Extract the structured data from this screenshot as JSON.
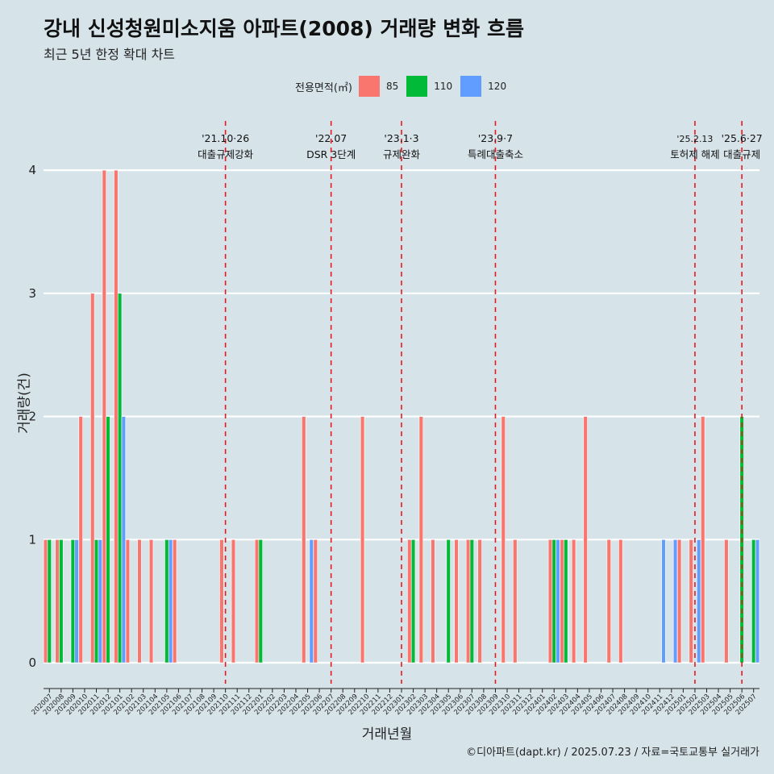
{
  "header": {
    "title": "강내 신성청원미소지움 아파트(2008) 거래량 변화 흐름",
    "subtitle": "최근 5년 한정 확대 차트"
  },
  "legend": {
    "title": "전용면적(㎡)",
    "items": [
      {
        "label": "85",
        "color": "#f8766d"
      },
      {
        "label": "110",
        "color": "#00ba38"
      },
      {
        "label": "120",
        "color": "#619cff"
      }
    ]
  },
  "caption": "©디아파트(dapt.kr) / 2025.07.23 / 자료=국토교통부 실거래가",
  "chart_data": {
    "type": "bar",
    "xlabel": "거래년월",
    "ylabel": "거래량(건)",
    "ylim": [
      -0.17,
      4.4
    ],
    "yticks": [
      0,
      1,
      2,
      3,
      4
    ],
    "grid": true,
    "categories": [
      "202007",
      "202008",
      "202009",
      "202010",
      "202011",
      "202012",
      "202101",
      "202102",
      "202103",
      "202104",
      "202105",
      "202106",
      "202107",
      "202108",
      "202109",
      "202110",
      "202111",
      "202112",
      "202201",
      "202202",
      "202203",
      "202204",
      "202205",
      "202206",
      "202207",
      "202208",
      "202209",
      "202210",
      "202211",
      "202212",
      "202301",
      "202302",
      "202303",
      "202304",
      "202305",
      "202306",
      "202307",
      "202308",
      "202309",
      "202310",
      "202311",
      "202312",
      "202401",
      "202402",
      "202403",
      "202404",
      "202405",
      "202406",
      "202407",
      "202408",
      "202409",
      "202410",
      "202411",
      "202412",
      "202501",
      "202502",
      "202503",
      "202504",
      "202505",
      "202506",
      "202507"
    ],
    "series": [
      {
        "name": "85",
        "color": "#f8766d",
        "values": [
          1,
          1,
          0,
          2,
          3,
          4,
          4,
          1,
          1,
          1,
          0,
          1,
          0,
          0,
          0,
          1,
          1,
          0,
          1,
          0,
          0,
          0,
          2,
          1,
          0,
          0,
          0,
          2,
          0,
          0,
          0,
          1,
          2,
          1,
          0,
          1,
          1,
          1,
          0,
          2,
          1,
          0,
          0,
          1,
          1,
          1,
          2,
          0,
          1,
          1,
          0,
          0,
          0,
          0,
          1,
          1,
          2,
          0,
          1,
          0,
          0
        ]
      },
      {
        "name": "110",
        "color": "#00ba38",
        "values": [
          1,
          1,
          1,
          0,
          1,
          2,
          3,
          0,
          0,
          0,
          1,
          0,
          0,
          0,
          0,
          0,
          0,
          0,
          1,
          0,
          0,
          0,
          0,
          0,
          0,
          0,
          0,
          0,
          0,
          0,
          0,
          1,
          0,
          0,
          1,
          0,
          1,
          0,
          0,
          0,
          0,
          0,
          0,
          1,
          1,
          0,
          0,
          0,
          0,
          0,
          0,
          0,
          0,
          0,
          0,
          0,
          0,
          0,
          0,
          2,
          1
        ]
      },
      {
        "name": "120",
        "color": "#619cff",
        "values": [
          0,
          0,
          1,
          0,
          1,
          0,
          2,
          0,
          0,
          0,
          1,
          0,
          0,
          0,
          0,
          0,
          0,
          0,
          0,
          0,
          0,
          0,
          1,
          0,
          0,
          0,
          0,
          0,
          0,
          0,
          0,
          0,
          0,
          0,
          0,
          0,
          0,
          0,
          0,
          0,
          0,
          0,
          0,
          1,
          0,
          0,
          0,
          0,
          0,
          0,
          0,
          0,
          1,
          1,
          0,
          1,
          0,
          0,
          0,
          0,
          1
        ]
      }
    ],
    "annotations": [
      {
        "x": "202110",
        "date": "'21.10·26",
        "label": "대출규제강화"
      },
      {
        "x": "202207",
        "date": "'22.07",
        "label": "DSR 3단계"
      },
      {
        "x": "202301",
        "date": "'23.1·3",
        "label": "규제완화"
      },
      {
        "x": "202309",
        "date": "'23.9·7",
        "label": "특례대출축소"
      },
      {
        "x": "202502",
        "date": "'25.2.13",
        "label": "토허제 해제"
      },
      {
        "x": "202506",
        "date": "'25.6·27",
        "label": "대출규제"
      }
    ]
  }
}
